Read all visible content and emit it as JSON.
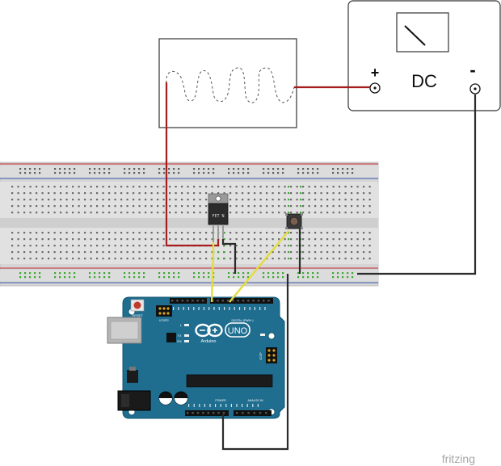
{
  "power_supply": {
    "label": "DC",
    "plus_label": "+",
    "minus_label": "-"
  },
  "mosfet": {
    "label": "FET N"
  },
  "arduino": {
    "reset_label": "RESET",
    "icsp_label": "ICSP2",
    "icsp_label_2": "ICSP",
    "brand_label": "Arduino",
    "model_label": "UNO",
    "digital_label": "DIGITAL (PWM~)",
    "power_label": "POWER",
    "analog_label": "ANALOG IN",
    "tx_label": "TX",
    "rx_label": "RX",
    "l_label": "L",
    "on_label": "ON"
  },
  "watermark": "fritzing",
  "colors": {
    "wire_red": "#a51d1d",
    "wire_black": "#2b2b2b",
    "wire_yellow": "#e4dc3c",
    "board_blue": "#1f6d8f",
    "breadboard": "#d9d9d9",
    "green_strip": "#3aa832"
  }
}
